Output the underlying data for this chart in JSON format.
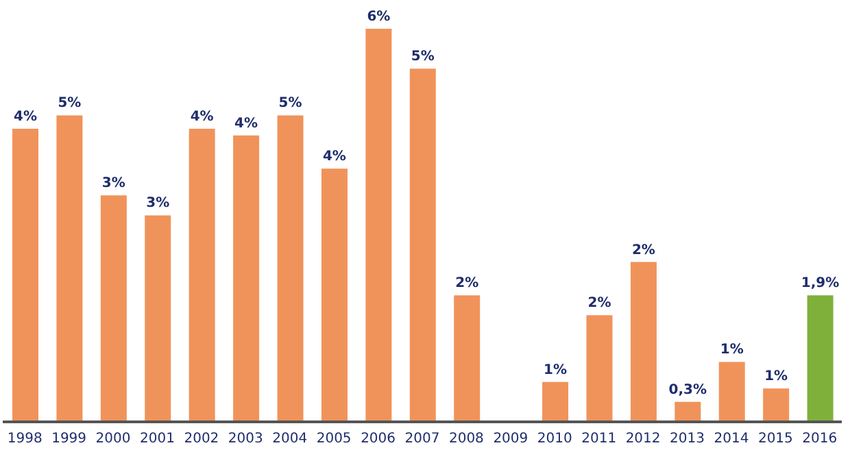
{
  "chart_data": {
    "type": "bar",
    "categories": [
      "1998",
      "1999",
      "2000",
      "2001",
      "2002",
      "2003",
      "2004",
      "2005",
      "2006",
      "2007",
      "2008",
      "2009",
      "2010",
      "2011",
      "2012",
      "2013",
      "2014",
      "2015",
      "2016"
    ],
    "values": [
      4.4,
      4.6,
      3.4,
      3.1,
      4.4,
      4.3,
      4.6,
      3.8,
      5.9,
      5.3,
      1.9,
      0,
      0.6,
      1.6,
      2.4,
      0.3,
      0.9,
      0.5,
      1.9
    ],
    "colors": [
      "#f0935a",
      "#f0935a",
      "#f0935a",
      "#f0935a",
      "#f0935a",
      "#f0935a",
      "#f0935a",
      "#f0935a",
      "#f0935a",
      "#f0935a",
      "#f0935a",
      "#f0935a",
      "#f0935a",
      "#f0935a",
      "#f0935a",
      "#f0935a",
      "#f0935a",
      "#f0935a",
      "#7fb03a"
    ],
    "value_labels": [
      "4%",
      "5%",
      "3%",
      "3%",
      "4%",
      "4%",
      "5%",
      "4%",
      "6%",
      "5%",
      "2%",
      null,
      "1%",
      "2%",
      "2%",
      "0,3%",
      "1%",
      "1%",
      "1,9%"
    ],
    "grid": false,
    "legend": false
  }
}
